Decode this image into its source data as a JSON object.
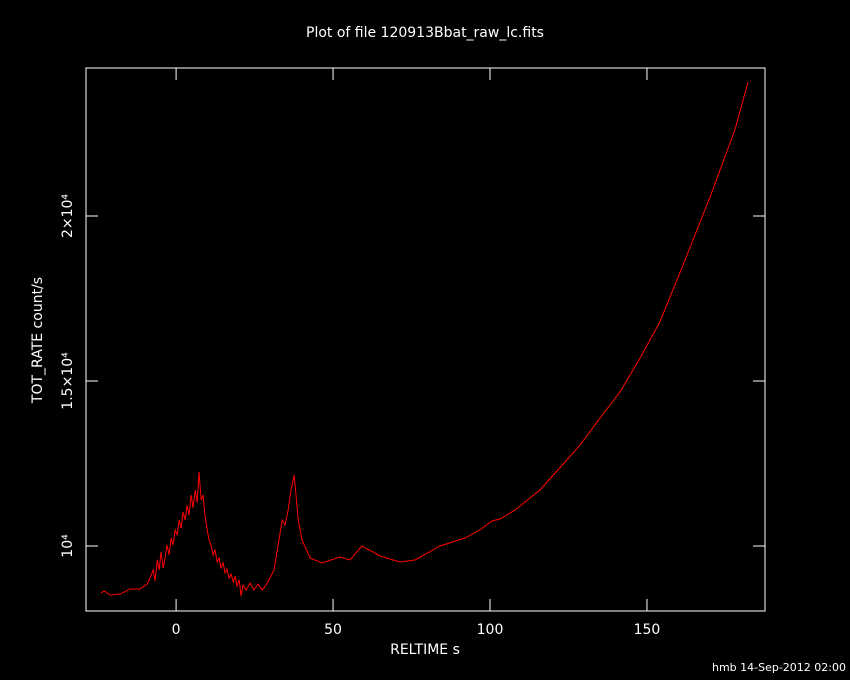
{
  "chart_data": {
    "type": "line",
    "title": "Plot of file 120913Bbat_raw_lc.fits",
    "x_label": "RELTIME  s",
    "y_label": "TOT_RATE  count/s",
    "footer": "hmb 14-Sep-2012 02:00",
    "color": "#ff0000",
    "xlim": [
      -28.7,
      187.6
    ],
    "ylim": [
      8030,
      24485
    ],
    "xticks": [
      0,
      50,
      100,
      150
    ],
    "yticks": [
      {
        "value": 10000,
        "label": "10⁴"
      },
      {
        "value": 15000,
        "label": "1.5×10⁴"
      },
      {
        "value": 20000,
        "label": "2×10⁴"
      }
    ],
    "x": [
      -23.9,
      -22.9,
      -21,
      -17.8,
      -14.6,
      -11.5,
      -9.2,
      -8.3,
      -7.3,
      -6.7,
      -6,
      -5.4,
      -4.8,
      -4.1,
      -3.5,
      -2.9,
      -2.2,
      -1.6,
      -1,
      -0.3,
      0.3,
      1,
      1.6,
      2.2,
      2.9,
      3.5,
      4.1,
      4.8,
      5.4,
      6.1,
      6.7,
      7.3,
      8,
      8.6,
      9.2,
      9.9,
      10.5,
      11.1,
      11.8,
      12.4,
      13.1,
      13.7,
      14.3,
      15,
      15.6,
      16.2,
      16.9,
      17.5,
      18.2,
      18.8,
      19.4,
      20.1,
      20.7,
      21.3,
      22.3,
      23.6,
      24.8,
      26.1,
      27.4,
      28.7,
      29.9,
      31.2,
      32.5,
      33.8,
      34.7,
      35.7,
      36.6,
      37.6,
      38.2,
      38.9,
      40.1,
      42.7,
      46.5,
      52.2,
      55.4,
      59.2,
      65,
      71.3,
      76.1,
      84.1,
      92,
      96.8,
      100.6,
      103.2,
      108,
      115.9,
      123.9,
      128.7,
      133.4,
      138.2,
      141.4,
      147.8,
      154.1,
      161.1,
      170.1,
      178,
      182.2
    ],
    "values": [
      8576,
      8636,
      8515,
      8545,
      8697,
      8697,
      8848,
      9030,
      9273,
      8939,
      9576,
      9273,
      9818,
      9333,
      9636,
      10030,
      9727,
      10242,
      10030,
      10485,
      10333,
      10788,
      10545,
      11030,
      10788,
      11242,
      10939,
      11545,
      11152,
      11697,
      11303,
      12242,
      11394,
      11545,
      10939,
      10485,
      10182,
      10030,
      9727,
      9879,
      9515,
      9636,
      9333,
      9485,
      9182,
      9303,
      9030,
      9152,
      8909,
      9091,
      8788,
      8970,
      8485,
      8818,
      8667,
      8879,
      8667,
      8848,
      8667,
      8818,
      9030,
      9273,
      10030,
      10788,
      10636,
      11091,
      11697,
      12152,
      11545,
      10788,
      10182,
      9636,
      9485,
      9667,
      9576,
      10000,
      9697,
      9515,
      9576,
      10000,
      10242,
      10485,
      10758,
      10818,
      11091,
      11697,
      12545,
      13061,
      13667,
      14273,
      14667,
      15697,
      16788,
      18424,
      20576,
      22606,
      24061
    ]
  }
}
